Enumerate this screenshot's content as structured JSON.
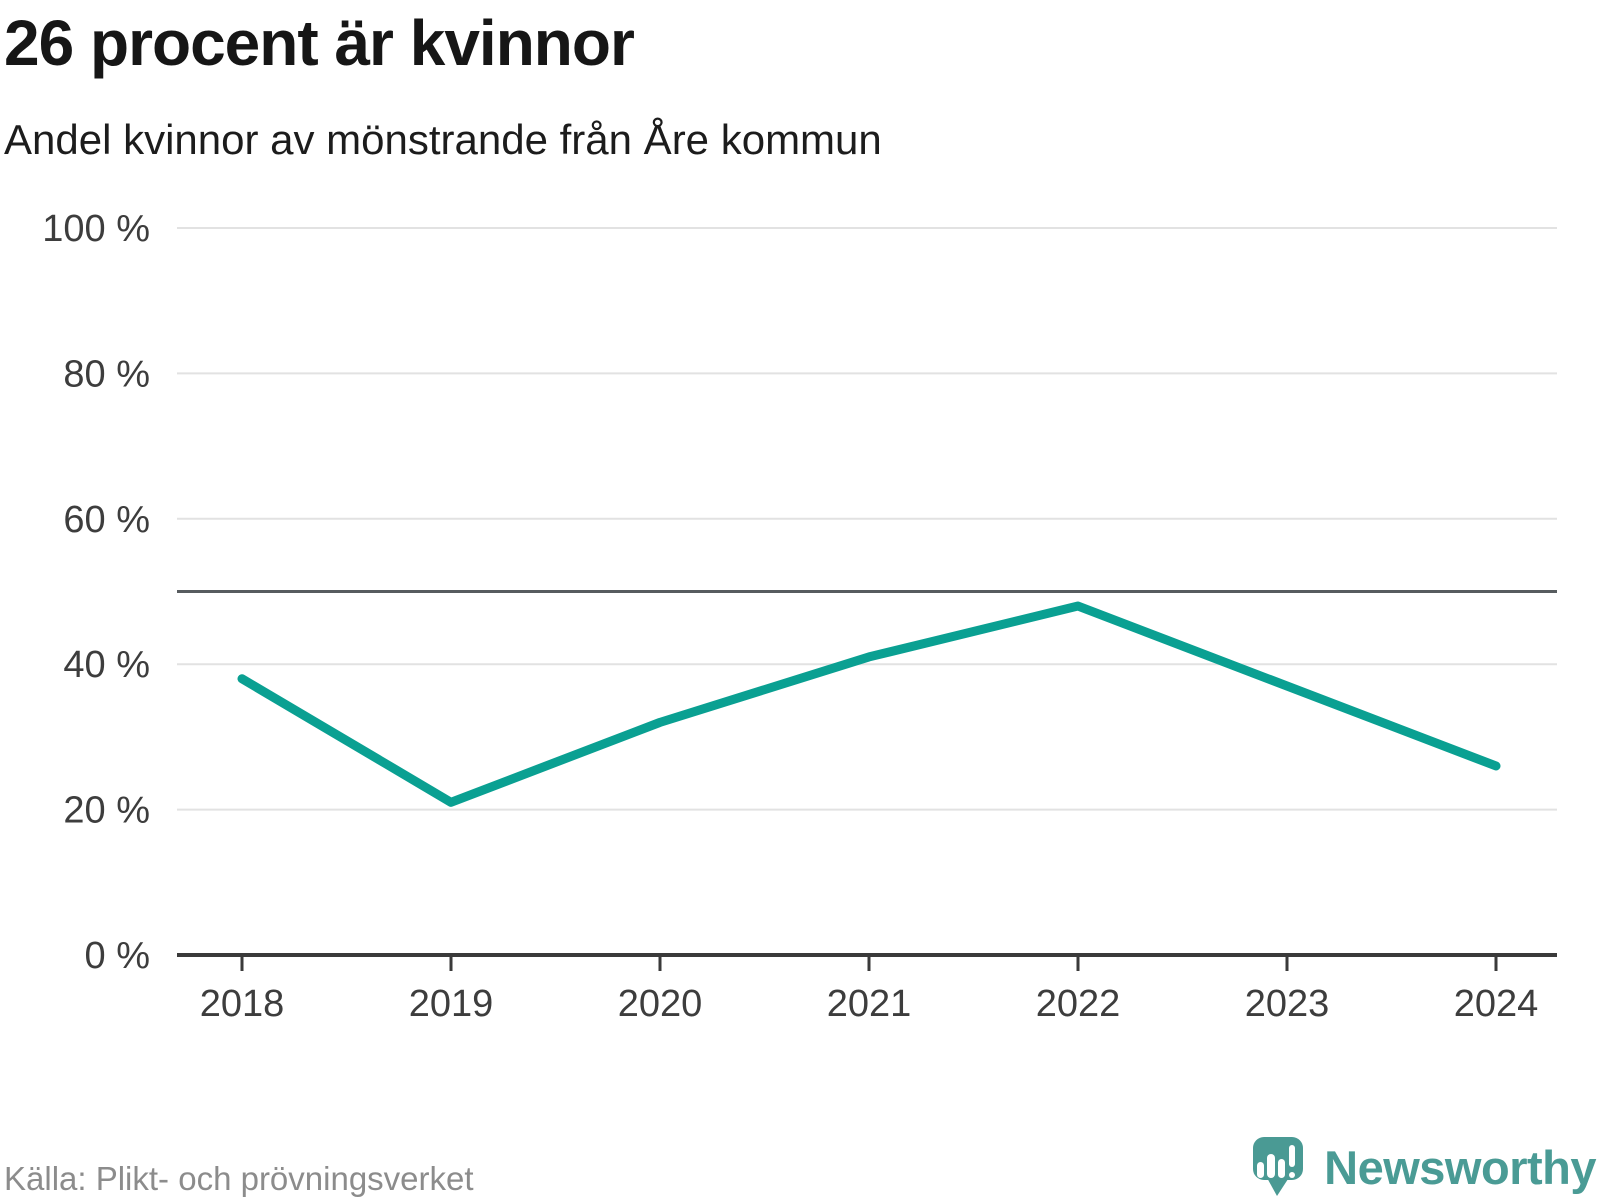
{
  "header": {
    "title": "26 procent är kvinnor",
    "subtitle": "Andel kvinnor av mönstrande från Åre kommun"
  },
  "chart_data": {
    "type": "line",
    "title": "26 procent är kvinnor",
    "subtitle": "Andel kvinnor av mönstrande från Åre kommun",
    "x": [
      "2018",
      "2019",
      "2020",
      "2021",
      "2022",
      "2023",
      "2024"
    ],
    "series": [
      {
        "name": "Andel kvinnor av mönstrande",
        "color": "#0aa092",
        "values": [
          38,
          21,
          32,
          41,
          48,
          37,
          26
        ]
      }
    ],
    "unit": "%",
    "ylim": [
      0,
      100
    ],
    "y_ticks": [
      0,
      20,
      40,
      60,
      80,
      100
    ],
    "tick_suffix": " %",
    "reference_line": {
      "value": 50,
      "color": "#575c5f"
    },
    "grid": true,
    "legend": "none",
    "colors": {
      "gridline": "#e2e2e2",
      "axis": "#3a3a3a",
      "tick_label": "#3d3d3d"
    }
  },
  "footer": {
    "source": "Källa: Plikt- och prövningsverket",
    "brand": "Newsworthy"
  }
}
